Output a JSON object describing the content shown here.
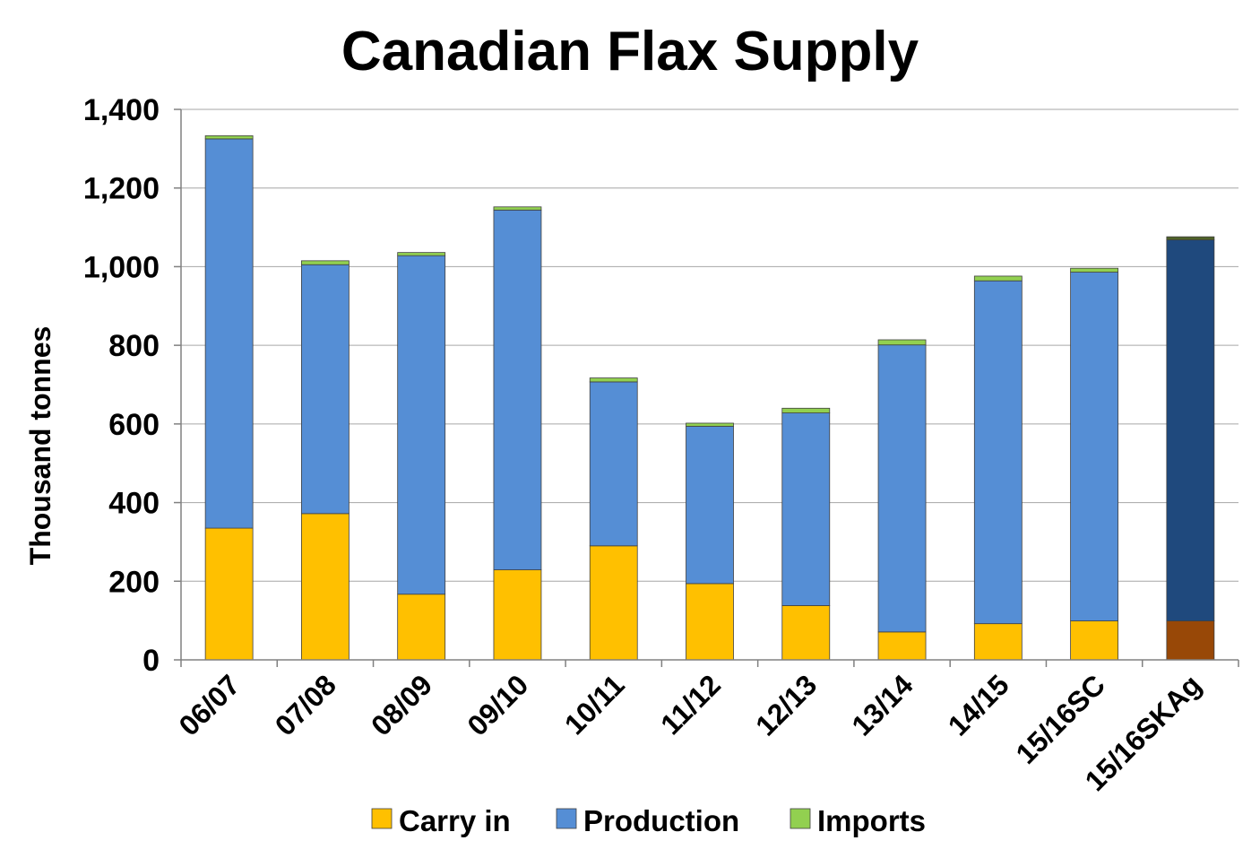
{
  "chart_data": {
    "type": "bar",
    "stacked": true,
    "title": "Canadian Flax Supply",
    "ylabel": "Thousand tonnes",
    "xlabel": "",
    "ylim": [
      0,
      1400
    ],
    "yticks": [
      0,
      200,
      400,
      600,
      800,
      1000,
      1200,
      1400
    ],
    "ytick_labels": [
      "0",
      "200",
      "400",
      "600",
      "800",
      "1,000",
      "1,200",
      "1,400"
    ],
    "grid": true,
    "legend_position": "bottom",
    "categories": [
      "06/07",
      "07/08",
      "08/09",
      "09/10",
      "10/11",
      "11/12",
      "12/13",
      "13/14",
      "14/15",
      "15/16SC",
      "15/16SKAg"
    ],
    "series": [
      {
        "name": "Carry in",
        "color": "#ffc000",
        "values": [
          335,
          372,
          167,
          229,
          290,
          194,
          138,
          71,
          92,
          99,
          99
        ]
      },
      {
        "name": "Production",
        "color": "#558ed5",
        "values": [
          990,
          633,
          861,
          915,
          417,
          400,
          490,
          730,
          872,
          887,
          969
        ]
      },
      {
        "name": "Imports",
        "color": "#92d050",
        "values": [
          8,
          10,
          8,
          8,
          10,
          8,
          12,
          13,
          12,
          10,
          8
        ]
      }
    ],
    "highlight_category_colors": {
      "15/16SKAg": [
        "#984807",
        "#1f497d",
        "#4f6228"
      ]
    }
  }
}
